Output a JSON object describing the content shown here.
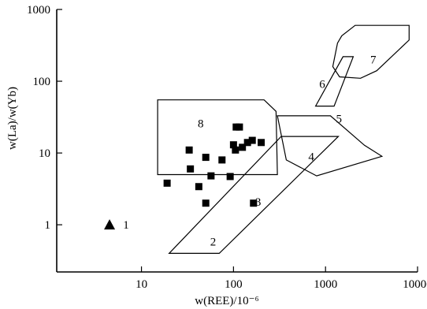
{
  "chart_data": {
    "type": "scatter",
    "title": "",
    "xlabel": "w(REE)/10⁻⁶",
    "ylabel": "w(La)/w(Yb)",
    "x_scale": "log",
    "y_scale": "log",
    "xlim": [
      1.2,
      10000
    ],
    "ylim": [
      0.22,
      1000
    ],
    "x_ticks": [
      10,
      100,
      1000,
      10000
    ],
    "x_tick_labels": [
      "10",
      "100",
      "1000",
      "10000"
    ],
    "y_ticks": [
      1,
      10,
      100,
      1000
    ],
    "y_tick_labels": [
      "1",
      "10",
      "100",
      "1000"
    ],
    "grid": false,
    "legend": "none",
    "series": [
      {
        "marker": "triangle",
        "points": [
          [
            4.5,
            1.0
          ]
        ]
      },
      {
        "marker": "square",
        "points": [
          [
            19,
            3.8
          ],
          [
            33,
            11
          ],
          [
            34,
            6.0
          ],
          [
            42,
            3.4
          ],
          [
            50,
            2.0
          ],
          [
            50,
            8.7
          ],
          [
            57,
            4.8
          ],
          [
            75,
            8.0
          ],
          [
            92,
            4.7
          ],
          [
            100,
            13
          ],
          [
            105,
            11
          ],
          [
            107,
            23
          ],
          [
            116,
            23
          ],
          [
            125,
            12
          ],
          [
            142,
            14
          ],
          [
            160,
            15
          ],
          [
            165,
            2.0
          ],
          [
            200,
            14
          ]
        ]
      }
    ],
    "regions": [
      {
        "label": "1",
        "label_at": [
          6.8,
          1.0
        ],
        "polygon": []
      },
      {
        "label": "2",
        "label_at": [
          60,
          0.58
        ],
        "polygon": [
          [
            20,
            0.4
          ],
          [
            70,
            0.4
          ],
          [
            1380,
            17
          ],
          [
            330,
            17
          ]
        ]
      },
      {
        "label": "3",
        "label_at": [
          185,
          2.1
        ],
        "polygon": []
      },
      {
        "label": "4",
        "label_at": [
          700,
          9
        ],
        "polygon": []
      },
      {
        "label": "5",
        "label_at": [
          1400,
          30
        ],
        "polygon": [
          [
            300,
            33
          ],
          [
            1130,
            33
          ],
          [
            2650,
            12.8
          ],
          [
            4100,
            9
          ],
          [
            800,
            4.8
          ],
          [
            375,
            8
          ]
        ]
      },
      {
        "label": "6",
        "label_at": [
          920,
          92
        ],
        "polygon": [
          [
            780,
            45
          ],
          [
            1240,
            45
          ],
          [
            2000,
            220
          ],
          [
            1550,
            220
          ]
        ]
      },
      {
        "label": "7",
        "label_at": [
          3300,
          200
        ],
        "polygon": [
          [
            1200,
            160
          ],
          [
            1350,
            340
          ],
          [
            1500,
            430
          ],
          [
            2100,
            600
          ],
          [
            8100,
            600
          ],
          [
            8100,
            375
          ],
          [
            3600,
            140
          ],
          [
            2400,
            110
          ],
          [
            1420,
            115
          ]
        ]
      },
      {
        "label": "8",
        "label_at": [
          44,
          26
        ],
        "polygon": [
          [
            15,
            55
          ],
          [
            215,
            55
          ],
          [
            290,
            38
          ],
          [
            300,
            5
          ],
          [
            15,
            5
          ]
        ]
      }
    ]
  }
}
